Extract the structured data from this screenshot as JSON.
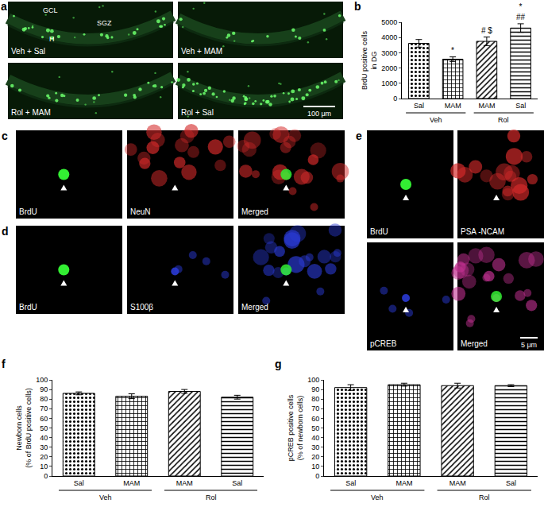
{
  "chart_data": [
    {
      "panel": "b",
      "type": "bar",
      "categories": [
        "Sal",
        "MAM",
        "MAM",
        "Sal"
      ],
      "groups": [
        "Veh",
        "Veh",
        "Rol",
        "Rol"
      ],
      "values": [
        3620,
        2580,
        3750,
        4620
      ],
      "errors": [
        250,
        150,
        280,
        280
      ],
      "y_label": "BrdU positive cells\nin DG",
      "ylim": [
        0,
        5000
      ],
      "yticks": [
        0,
        1000,
        2000,
        3000,
        4000,
        5000
      ],
      "grid": false,
      "annotations": [
        {
          "x": 1,
          "text": "*"
        },
        {
          "x": 2,
          "text": "# $"
        },
        {
          "x": 3,
          "text": "*\n##"
        }
      ]
    },
    {
      "panel": "f",
      "type": "bar",
      "categories": [
        "Sal",
        "MAM",
        "MAM",
        "Sal"
      ],
      "groups": [
        "Veh",
        "Veh",
        "Rol",
        "Rol"
      ],
      "values": [
        86,
        83,
        88,
        82
      ],
      "errors": [
        1.5,
        2.5,
        2,
        2
      ],
      "y_label": "Newborn cells\n(% of BrdU positive cells)",
      "ylim": [
        0,
        100
      ],
      "yticks": [
        0,
        10,
        20,
        30,
        40,
        50,
        60,
        70,
        80,
        90,
        100
      ],
      "grid": false
    },
    {
      "panel": "g",
      "type": "bar",
      "categories": [
        "Sal",
        "MAM",
        "MAM",
        "Sal"
      ],
      "groups": [
        "Veh",
        "Veh",
        "Rol",
        "Rol"
      ],
      "values": [
        92,
        95,
        94,
        94
      ],
      "errors": [
        3,
        1.5,
        2.5,
        1
      ],
      "y_label": "pCREB positive cells\n(% of newborn cells)",
      "ylim": [
        0,
        100
      ],
      "yticks": [
        0,
        10,
        20,
        30,
        40,
        50,
        60,
        70,
        80,
        90,
        100
      ],
      "grid": false
    }
  ],
  "image_panels": [
    {
      "panel": "a",
      "tiles": [
        "Veh + Sal",
        "Veh + MAM",
        "Rol + MAM",
        "Rol + Sal"
      ],
      "labels": [
        "GCL",
        "H",
        "SGZ"
      ],
      "scale_bar": "100 μm"
    },
    {
      "panel": "c",
      "tiles": [
        "BrdU",
        "NeuN",
        "Merged"
      ]
    },
    {
      "panel": "d",
      "tiles": [
        "BrdU",
        "S100β",
        "Merged"
      ]
    },
    {
      "panel": "e",
      "tiles": [
        "BrdU",
        "PSA -NCAM",
        "pCREB",
        "Merged"
      ],
      "scale_bar": "5 μm"
    }
  ]
}
